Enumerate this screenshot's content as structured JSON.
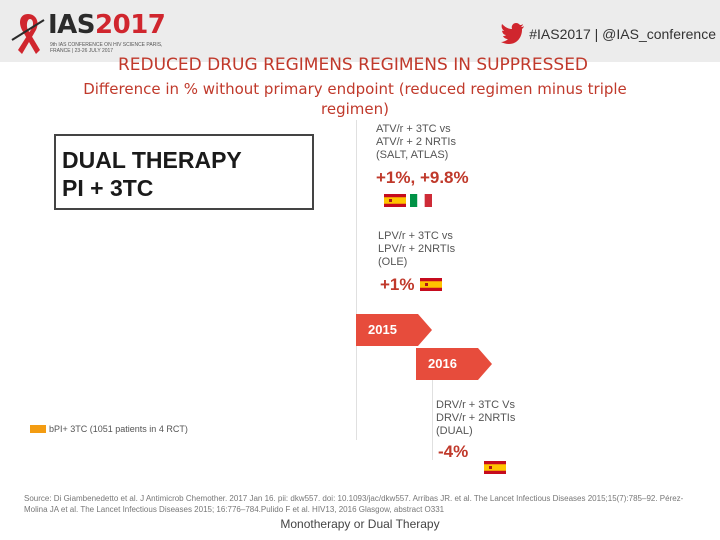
{
  "header": {
    "logo_main": "IAS",
    "logo_year": "2017",
    "logo_sub": "9th IAS CONFERENCE ON HIV SCIENCE PARIS, FRANCE | 23-26 JULY 2017",
    "hashtag": "#IAS2017 | @IAS_conference"
  },
  "titles": {
    "line1": "REDUCED DRUG REGIMENS REGIMENS IN SUPPRESSED",
    "line2": "Difference in % without primary endpoint (reduced regimen minus triple regimen)"
  },
  "dual_box": {
    "line1": "DUAL THERAPY",
    "line2": "PI + 3TC"
  },
  "timeline": {
    "study1": {
      "line1": "ATV/r + 3TC  vs",
      "line2": "ATV/r + 2 NRTIs",
      "line3": "(SALT, ATLAS)",
      "pct": "+1%, +9.8%"
    },
    "study2": {
      "line1": "LPV/r + 3TC  vs",
      "line2": "LPV/r + 2NRTIs",
      "line3": "(OLE)",
      "pct": "+1%"
    },
    "year1": "2015",
    "year2": "2016",
    "study3": {
      "line1": "DRV/r + 3TC Vs",
      "line2": "DRV/r + 2NRTIs",
      "line3": "(DUAL)",
      "pct": "-4%"
    }
  },
  "legend": {
    "text": "bPI+ 3TC (1051 patients in 4 RCT)",
    "color": "#f39c12"
  },
  "source": "Source: Di Giambenedetto et al. J Antimicrob Chemother. 2017 Jan 16. pii: dkw557. doi: 10.1093/jac/dkw557. Arribas JR. et al. The Lancet Infectious Diseases 2015;15(7):785–92. Pérez-Molina JA et al. The Lancet Infectious Diseases 2015; 16:776–784.Pulido F et al. HIV13, 2016 Glasgow, abstract O331",
  "footer": "Monotherapy or Dual Therapy",
  "colors": {
    "accent": "#c0392b",
    "arrow": "#e74c3c"
  }
}
